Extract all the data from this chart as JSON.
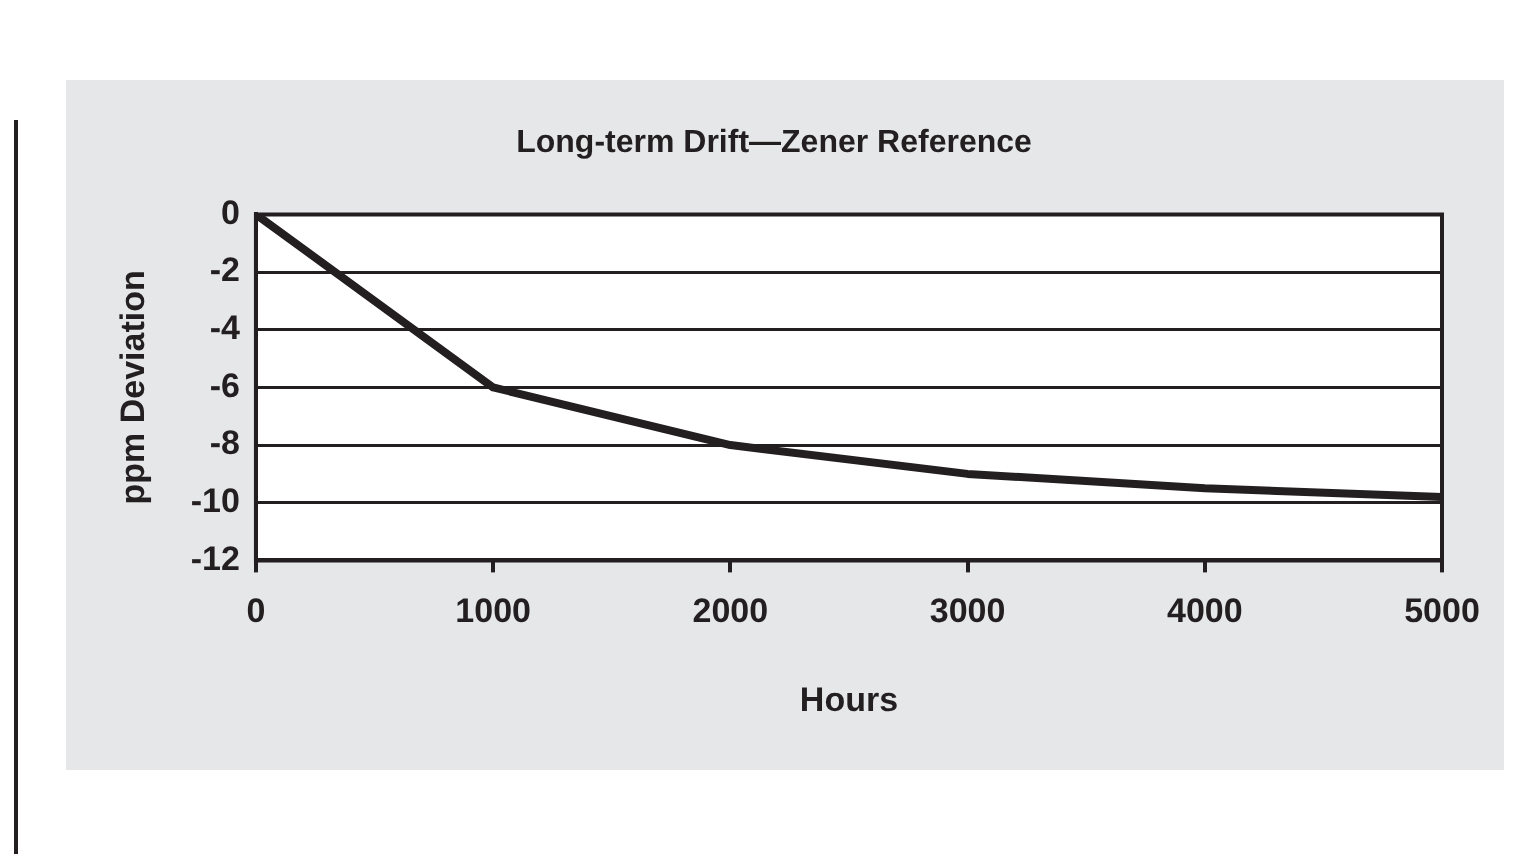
{
  "chart_data": {
    "type": "line",
    "title": "Long-term Drift—Zener Reference",
    "xlabel": "Hours",
    "ylabel": "ppm Deviation",
    "x": [
      0,
      1000,
      2000,
      3000,
      4000,
      5000
    ],
    "series": [
      {
        "color": "#231f20",
        "values": [
          0,
          -6,
          -8,
          -9,
          -9.5,
          -9.8
        ]
      }
    ],
    "xlim": [
      0,
      5000
    ],
    "xticks": [
      0,
      1000,
      2000,
      3000,
      4000,
      5000
    ],
    "ylim": [
      -12,
      0
    ],
    "yticks": [
      -12,
      -10,
      -8,
      -6,
      -4,
      -2,
      0
    ],
    "grid": "y",
    "legend": false,
    "marker": "none",
    "line_style": "solid"
  }
}
